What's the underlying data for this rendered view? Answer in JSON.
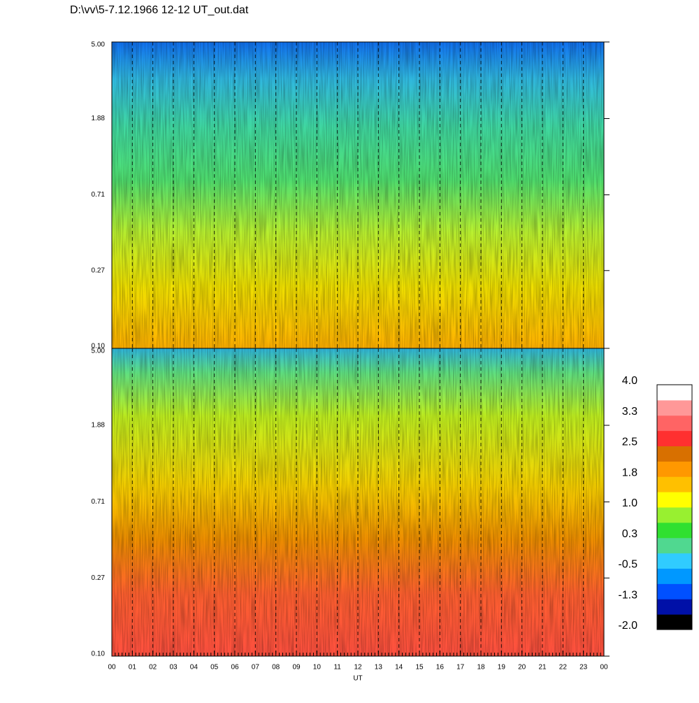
{
  "chart_data": [
    {
      "type": "heatmap",
      "title": "D:\\vv\\5-7.12.1966  12-12 UT_out.dat",
      "log_y": true,
      "ylim": [
        0.1,
        5
      ],
      "yticks": [
        {
          "value": 0.1,
          "label": "0.10"
        },
        {
          "value": 0.27,
          "label": "0.27"
        },
        {
          "value": 0.71,
          "label": "0.71"
        },
        {
          "value": 1.88,
          "label": "1.88"
        },
        {
          "value": 5,
          "label": "5.00"
        }
      ],
      "xlim": [
        0,
        24
      ],
      "xticks": [
        {
          "value": 0,
          "label": "00"
        },
        {
          "value": 1,
          "label": "01"
        },
        {
          "value": 2,
          "label": "02"
        },
        {
          "value": 3,
          "label": "03"
        },
        {
          "value": 4,
          "label": "04"
        },
        {
          "value": 5,
          "label": "05"
        },
        {
          "value": 6,
          "label": "06"
        },
        {
          "value": 7,
          "label": "07"
        },
        {
          "value": 8,
          "label": "08"
        },
        {
          "value": 9,
          "label": "09"
        },
        {
          "value": 10,
          "label": "10"
        },
        {
          "value": 11,
          "label": "11"
        },
        {
          "value": 12,
          "label": "12"
        },
        {
          "value": 13,
          "label": "13"
        },
        {
          "value": 14,
          "label": "14"
        },
        {
          "value": 15,
          "label": "15"
        },
        {
          "value": 16,
          "label": "16"
        },
        {
          "value": 17,
          "label": "17"
        },
        {
          "value": 18,
          "label": "18"
        },
        {
          "value": 19,
          "label": "19"
        },
        {
          "value": 20,
          "label": "20"
        },
        {
          "value": 21,
          "label": "21"
        },
        {
          "value": 22,
          "label": "22"
        },
        {
          "value": 23,
          "label": "23"
        },
        {
          "value": 24,
          "label": "00"
        }
      ]
    },
    {
      "type": "heatmap",
      "log_y": true,
      "ylim": [
        0.1,
        5
      ],
      "yticks": [
        {
          "value": 0.1,
          "label": "0.10"
        },
        {
          "value": 0.27,
          "label": "0.27"
        },
        {
          "value": 0.71,
          "label": "0.71"
        },
        {
          "value": 1.88,
          "label": "1.88"
        },
        {
          "value": 5,
          "label": "5.00"
        }
      ],
      "xlim": [
        0,
        24
      ],
      "xlabel": "UT",
      "xticks": [
        {
          "value": 0,
          "label": "00"
        },
        {
          "value": 1,
          "label": "01"
        },
        {
          "value": 2,
          "label": "02"
        },
        {
          "value": 3,
          "label": "03"
        },
        {
          "value": 4,
          "label": "04"
        },
        {
          "value": 5,
          "label": "05"
        },
        {
          "value": 6,
          "label": "06"
        },
        {
          "value": 7,
          "label": "07"
        },
        {
          "value": 8,
          "label": "08"
        },
        {
          "value": 9,
          "label": "09"
        },
        {
          "value": 10,
          "label": "10"
        },
        {
          "value": 11,
          "label": "11"
        },
        {
          "value": 12,
          "label": "12"
        },
        {
          "value": 13,
          "label": "13"
        },
        {
          "value": 14,
          "label": "14"
        },
        {
          "value": 15,
          "label": "15"
        },
        {
          "value": 16,
          "label": "16"
        },
        {
          "value": 17,
          "label": "17"
        },
        {
          "value": 18,
          "label": "18"
        },
        {
          "value": 19,
          "label": "19"
        },
        {
          "value": 20,
          "label": "20"
        },
        {
          "value": 21,
          "label": "21"
        },
        {
          "value": 22,
          "label": "22"
        },
        {
          "value": 23,
          "label": "23"
        },
        {
          "value": 24,
          "label": "00"
        }
      ],
      "colorbar": {
        "lim": [
          -2,
          4
        ],
        "colors": [
          "#000000",
          "#0010a8",
          "#0050ff",
          "#0098ff",
          "#30ccff",
          "#50d890",
          "#30e030",
          "#98f030",
          "#ffff00",
          "#ffc000",
          "#ff9800",
          "#d87000",
          "#ff3030",
          "#ff6464",
          "#ff9898",
          "#ffffff"
        ],
        "ticks": [
          {
            "value": 4,
            "label": "4.0"
          },
          {
            "value": 3.25,
            "label": "3.3"
          },
          {
            "value": 2.5,
            "label": "2.5"
          },
          {
            "value": 1.75,
            "label": "1.8"
          },
          {
            "value": 1,
            "label": "1.0"
          },
          {
            "value": 0.25,
            "label": "0.3"
          },
          {
            "value": -0.5,
            "label": "-0.5"
          },
          {
            "value": -1.25,
            "label": "-1.3"
          },
          {
            "value": -2,
            "label": "-2.0"
          }
        ]
      }
    }
  ]
}
